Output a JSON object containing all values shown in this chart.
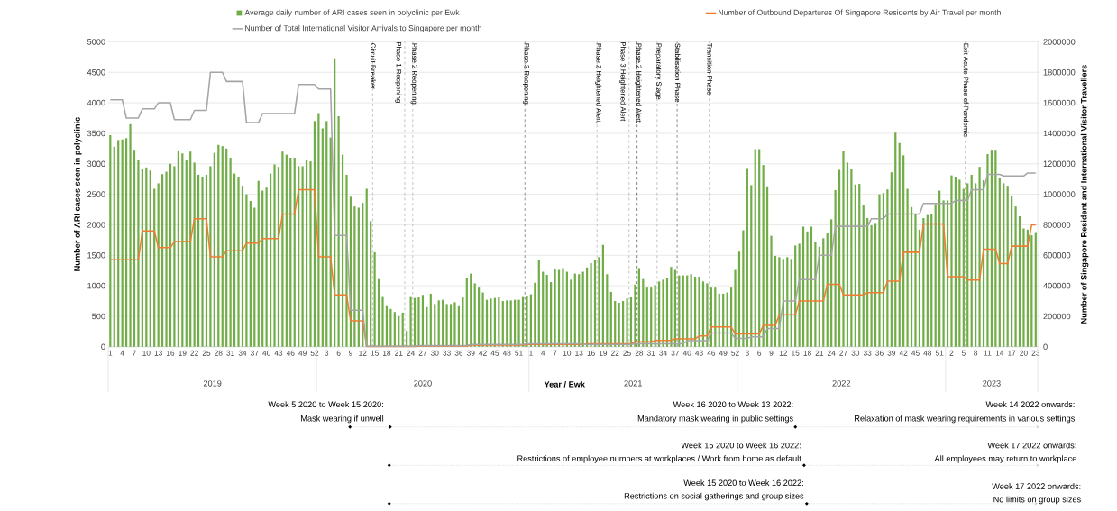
{
  "chart_data": {
    "type": "bar",
    "xlabel": "Year / Ewk",
    "ylabel": "Number of ARI cases seen in polyclinic",
    "y2label": "Number of Singapore Resident and International Visitor Travellers",
    "categories": [
      "1",
      null,
      null,
      "4",
      null,
      null,
      "7",
      null,
      null,
      "10",
      null,
      null,
      "13",
      null,
      null,
      "16",
      null,
      null,
      "19",
      null,
      null,
      "22",
      null,
      null,
      "25",
      null,
      null,
      "28",
      null,
      null,
      "31",
      null,
      null,
      "34",
      null,
      null,
      "37",
      null,
      null,
      "40",
      null,
      null,
      "43",
      null,
      null,
      "46",
      null,
      null,
      "49",
      null,
      null,
      "52",
      null,
      null,
      "3",
      null,
      null,
      "6",
      null,
      null,
      "9",
      null,
      null,
      "12",
      null,
      null,
      "15",
      null,
      null,
      "18",
      null,
      null,
      "21",
      null,
      null,
      "24",
      null,
      null,
      "27",
      null,
      null,
      "30",
      null,
      null,
      "33",
      null,
      null,
      "36",
      null,
      null,
      "39",
      null,
      null,
      "42",
      null,
      null,
      "45",
      null,
      null,
      "48",
      null,
      null,
      "51",
      null,
      null,
      "1",
      null,
      null,
      "4",
      null,
      null,
      "7",
      null,
      null,
      "10",
      null,
      null,
      "13",
      null,
      null,
      "16",
      null,
      null,
      "19",
      null,
      null,
      "22",
      null,
      null,
      "25",
      null,
      null,
      "28",
      null,
      null,
      "31",
      null,
      null,
      "34",
      null,
      null,
      "37",
      null,
      null,
      "40",
      null,
      null,
      "43",
      null,
      null,
      "46",
      null,
      null,
      "49",
      null,
      null,
      "52",
      null,
      null,
      "3",
      null,
      null,
      "6",
      null,
      null,
      "9",
      null,
      null,
      "12",
      null,
      null,
      "15",
      null,
      null,
      "18",
      null,
      null,
      "21",
      null,
      null,
      "24",
      null,
      null,
      "27",
      null,
      null,
      "30",
      null,
      null,
      "33",
      null,
      null,
      "36",
      null,
      null,
      "39",
      null,
      null,
      "42",
      null,
      null,
      "45",
      null,
      null,
      "48",
      null,
      null,
      "51",
      null,
      null,
      "2",
      null,
      null,
      "5",
      null,
      null,
      "8",
      null,
      null,
      "11",
      null,
      null,
      "14",
      null,
      null,
      "17",
      null,
      null,
      "20",
      null,
      null,
      "23"
    ],
    "series": [
      {
        "name": "Average daily number of ARI cases seen in polyclinic per Ewk",
        "color": "#70ad47",
        "values": [
          3470,
          3280,
          3390,
          3400,
          3420,
          3650,
          3230,
          3060,
          2910,
          2940,
          2890,
          2590,
          2680,
          2830,
          2870,
          3000,
          2960,
          3220,
          3170,
          3060,
          3200,
          3020,
          2820,
          2790,
          2820,
          2960,
          3180,
          3310,
          3290,
          3250,
          3100,
          2840,
          2790,
          2640,
          2500,
          2390,
          2280,
          2720,
          2560,
          2610,
          2840,
          2990,
          2950,
          3200,
          3150,
          3100,
          3100,
          2960,
          2960,
          3060,
          3040,
          3700,
          3830,
          3580,
          3700,
          3430,
          4730,
          3780,
          3150,
          2820,
          2460,
          2300,
          2280,
          2360,
          2590,
          2060,
          1550,
          1110,
          830,
          680,
          620,
          570,
          500,
          560,
          260,
          830,
          800,
          820,
          850,
          650,
          870,
          700,
          760,
          770,
          700,
          700,
          730,
          680,
          810,
          1120,
          1200,
          1040,
          970,
          890,
          770,
          790,
          800,
          810,
          750,
          760,
          760,
          770,
          770,
          830,
          840,
          860,
          1050,
          1420,
          1230,
          1180,
          1060,
          1280,
          1260,
          1290,
          1230,
          1100,
          1200,
          1190,
          1230,
          1300,
          1370,
          1420,
          1470,
          1670,
          1190,
          900,
          750,
          720,
          750,
          790,
          820,
          1020,
          1290,
          1110,
          970,
          970,
          1010,
          1070,
          1100,
          1120,
          1310,
          1260,
          1170,
          1170,
          1170,
          1190,
          1150,
          1150,
          1070,
          1040,
          970,
          970,
          870,
          870,
          890,
          970,
          1260,
          1560,
          1910,
          2930,
          2650,
          3240,
          3240,
          2980,
          2630,
          1820,
          1490,
          1470,
          1440,
          1470,
          1440,
          1660,
          1690,
          1970,
          1890,
          1970,
          1720,
          1640,
          1780,
          1870,
          2090,
          2570,
          2900,
          3210,
          3020,
          2910,
          2660,
          2670,
          2330,
          2110,
          1990,
          2030,
          2500,
          2520,
          2580,
          2860,
          3510,
          3340,
          3140,
          2590,
          2290,
          2180,
          1920,
          2110,
          2160,
          2180,
          2340,
          2560,
          2400,
          2400,
          2810,
          2790,
          2740,
          2590,
          2680,
          2820,
          2680,
          2950,
          2730,
          3160,
          3230,
          3230,
          2760,
          2680,
          2640,
          2470,
          2300,
          2140,
          1940,
          1920,
          1830,
          1880
        ]
      },
      {
        "name": "Number of Outbound Departures Of Singapore Residents by Air Travel per month",
        "type": "line",
        "axis": "y2",
        "color": "#ed7d31",
        "values": [
          570000,
          570000,
          570000,
          570000,
          570000,
          570000,
          570000,
          570000,
          760000,
          760000,
          760000,
          760000,
          650000,
          650000,
          650000,
          650000,
          690000,
          690000,
          690000,
          690000,
          690000,
          840000,
          840000,
          840000,
          840000,
          590000,
          590000,
          590000,
          590000,
          630000,
          630000,
          630000,
          630000,
          630000,
          680000,
          680000,
          680000,
          680000,
          710000,
          710000,
          710000,
          710000,
          710000,
          870000,
          870000,
          870000,
          870000,
          1030000,
          1030000,
          1030000,
          1030000,
          1030000,
          590000,
          590000,
          590000,
          590000,
          340000,
          340000,
          340000,
          340000,
          170000,
          170000,
          170000,
          170000,
          2000,
          2000,
          2000,
          2000,
          2000,
          2000,
          2000,
          2000,
          2000,
          2000,
          2000,
          2000,
          2000,
          5000,
          5000,
          5000,
          5000,
          5000,
          5000,
          5000,
          5000,
          5000,
          5000,
          5000,
          5000,
          5000,
          10000,
          10000,
          10000,
          10000,
          10000,
          10000,
          10000,
          10000,
          10000,
          10000,
          10000,
          10000,
          10000,
          10000,
          15000,
          15000,
          15000,
          15000,
          15000,
          15000,
          15000,
          15000,
          15000,
          15000,
          15000,
          15000,
          15000,
          15000,
          15000,
          20000,
          20000,
          20000,
          20000,
          20000,
          20000,
          20000,
          20000,
          20000,
          20000,
          20000,
          20000,
          32000,
          32000,
          32000,
          32000,
          32000,
          42000,
          42000,
          42000,
          42000,
          42000,
          52000,
          52000,
          52000,
          52000,
          52000,
          52000,
          71000,
          71000,
          71000,
          130000,
          130000,
          130000,
          130000,
          130000,
          130000,
          84000,
          84000,
          84000,
          84000,
          84000,
          84000,
          84000,
          140000,
          140000,
          140000,
          140000,
          210000,
          210000,
          210000,
          210000,
          210000,
          300000,
          300000,
          300000,
          300000,
          300000,
          300000,
          300000,
          410000,
          410000,
          410000,
          410000,
          340000,
          340000,
          340000,
          340000,
          340000,
          340000,
          355000,
          355000,
          355000,
          355000,
          355000,
          430000,
          430000,
          430000,
          430000,
          620000,
          620000,
          620000,
          620000,
          620000,
          805000,
          805000,
          805000,
          805000,
          805000,
          805000,
          460000,
          460000,
          460000,
          460000,
          460000,
          437000,
          437000,
          437000,
          437000,
          640000,
          640000,
          640000,
          640000,
          545000,
          545000,
          545000,
          660000,
          660000,
          660000,
          660000,
          660000,
          800000,
          800000
        ]
      },
      {
        "name": "Number of Total International Visitor Arrivals to Singapore per month",
        "type": "line",
        "axis": "y2",
        "color": "#a5a5a5",
        "values": [
          1620000,
          1620000,
          1620000,
          1620000,
          1500000,
          1500000,
          1500000,
          1500000,
          1560000,
          1560000,
          1560000,
          1560000,
          1600000,
          1600000,
          1600000,
          1600000,
          1490000,
          1490000,
          1490000,
          1490000,
          1490000,
          1550000,
          1550000,
          1550000,
          1550000,
          1800000,
          1800000,
          1800000,
          1800000,
          1740000,
          1740000,
          1740000,
          1740000,
          1740000,
          1470000,
          1470000,
          1470000,
          1470000,
          1530000,
          1530000,
          1530000,
          1530000,
          1530000,
          1530000,
          1530000,
          1530000,
          1530000,
          1720000,
          1720000,
          1720000,
          1720000,
          1720000,
          1690000,
          1690000,
          1690000,
          1690000,
          730000,
          730000,
          730000,
          730000,
          240000,
          240000,
          240000,
          240000,
          3000,
          3000,
          3000,
          3000,
          3000,
          3000,
          3000,
          3000,
          3000,
          3000,
          3000,
          3000,
          3000,
          8000,
          8000,
          8000,
          8000,
          8000,
          8000,
          8000,
          8000,
          8000,
          8000,
          8000,
          8000,
          8000,
          15000,
          15000,
          15000,
          15000,
          15000,
          15000,
          15000,
          15000,
          15000,
          15000,
          15000,
          15000,
          15000,
          15000,
          20000,
          20000,
          20000,
          20000,
          20000,
          20000,
          20000,
          20000,
          20000,
          20000,
          20000,
          20000,
          20000,
          20000,
          15000,
          15000,
          15000,
          15000,
          15000,
          15000,
          15000,
          15000,
          15000,
          15000,
          15000,
          15000,
          15000,
          20000,
          20000,
          20000,
          20000,
          20000,
          20000,
          20000,
          20000,
          20000,
          20000,
          20000,
          20000,
          20000,
          40000,
          40000,
          40000,
          40000,
          40000,
          40000,
          90000,
          90000,
          90000,
          90000,
          90000,
          90000,
          55000,
          55000,
          55000,
          55000,
          65000,
          65000,
          65000,
          65000,
          120000,
          120000,
          120000,
          120000,
          300000,
          300000,
          300000,
          300000,
          440000,
          440000,
          440000,
          440000,
          440000,
          600000,
          600000,
          600000,
          600000,
          790000,
          790000,
          790000,
          790000,
          790000,
          790000,
          790000,
          790000,
          790000,
          840000,
          840000,
          840000,
          840000,
          870000,
          870000,
          870000,
          870000,
          870000,
          870000,
          870000,
          870000,
          870000,
          940000,
          940000,
          940000,
          940000,
          940000,
          940000,
          940000,
          940000,
          960000,
          960000,
          960000,
          960000,
          1030000,
          1030000,
          1030000,
          1030000,
          1130000,
          1130000,
          1130000,
          1130000,
          1120000,
          1120000,
          1120000,
          1120000,
          1120000,
          1120000,
          1140000,
          1140000,
          1140000
        ]
      }
    ],
    "ylim": [
      0,
      5000
    ],
    "yticks": [
      0,
      500,
      1000,
      1500,
      2000,
      2500,
      3000,
      3500,
      4000,
      4500,
      5000
    ],
    "y2lim": [
      0,
      2000000
    ],
    "y2ticks": [
      0,
      200000,
      400000,
      600000,
      800000,
      1000000,
      1200000,
      1400000,
      1600000,
      1800000,
      2000000
    ],
    "grid": "y",
    "legend": "top",
    "marker": "none",
    "line_style": "solid",
    "annotations": [
      "2019",
      "2020",
      "2021",
      "2022",
      "2023",
      "Circuit Breaker",
      "Phase 1 Reopening",
      "Phase 2 Reopening",
      "Phase 3 Reopening",
      "Phase 2 Heightened Alert",
      "Phase 3 Heightened Alert",
      "Phase 2 Heightened Alert",
      "Preparatory Stage",
      "Stabilisation Phase",
      "Transition Phase",
      "Exit Acute Phase of Pandemic",
      "Week 5 2020 to Week 15 2020:",
      "Mask wearing if unwell",
      "Week 16 2020 to Week 13 2022:",
      "Mandatory mask wearing in public settings",
      "Week 14 2022 onwards:",
      "Relaxation of mask wearing requirements in various settings",
      "Week 15 2020 to Week 16 2022:",
      "Restrictions of employee numbers at workplaces / Work from home as default",
      "Week 17 2022 onwards:",
      "All employees may return to workplace",
      "Week 15 2020 to Week 16 2022:",
      "Restrictions on social gatherings and group sizes",
      "Week 17 2022 onwards:",
      "No limits on group sizes"
    ]
  }
}
